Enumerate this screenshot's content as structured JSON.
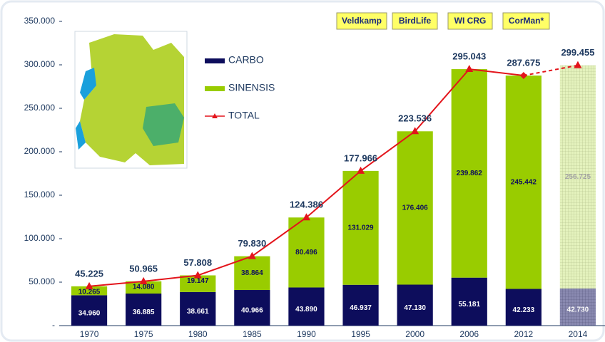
{
  "chart_data": {
    "type": "stacked_bar_line",
    "categories": [
      "1970",
      "1975",
      "1980",
      "1985",
      "1990",
      "1995",
      "2000",
      "2006",
      "2012",
      "2014"
    ],
    "estimated_category": "2014",
    "series": [
      {
        "name": "CARBO",
        "color": "#0d0d5c",
        "values": [
          34960,
          36885,
          38661,
          40966,
          43890,
          46937,
          47130,
          55181,
          42233,
          42730
        ],
        "value_labels": [
          "34.960",
          "36.885",
          "38.661",
          "40.966",
          "43.890",
          "46.937",
          "47.130",
          "55.181",
          "42.233",
          "42.730"
        ]
      },
      {
        "name": "SINENSIS",
        "color": "#99cc00",
        "values": [
          10265,
          14080,
          19147,
          38864,
          80496,
          131029,
          176406,
          239862,
          245442,
          256725
        ],
        "value_labels": [
          "10.265",
          "14.080",
          "19.147",
          "38.864",
          "80.496",
          "131.029",
          "176.406",
          "239.862",
          "245.442",
          "256.725"
        ]
      },
      {
        "name": "TOTAL",
        "color": "#e3141b",
        "kind": "line",
        "values": [
          45225,
          50965,
          57808,
          79830,
          124386,
          177966,
          223536,
          295043,
          287675,
          299455
        ],
        "value_labels": [
          "45.225",
          "50.965",
          "57.808",
          "79.830",
          "124.386",
          "177.966",
          "223.536",
          "295.043",
          "287.675",
          "299.455"
        ]
      }
    ],
    "ylim": [
      0,
      350000
    ],
    "yticks": [
      {
        "value": 0,
        "label": "-"
      },
      {
        "value": 50000,
        "label": "50.000"
      },
      {
        "value": 100000,
        "label": "100.000"
      },
      {
        "value": 150000,
        "label": "150.000"
      },
      {
        "value": 200000,
        "label": "200.000"
      },
      {
        "value": 250000,
        "label": "250.000"
      },
      {
        "value": 300000,
        "label": "300.000"
      },
      {
        "value": 350000,
        "label": "350.000"
      }
    ],
    "sources": [
      "Veldkamp",
      "BirdLife",
      "WI CRG",
      "CorMan*"
    ]
  }
}
